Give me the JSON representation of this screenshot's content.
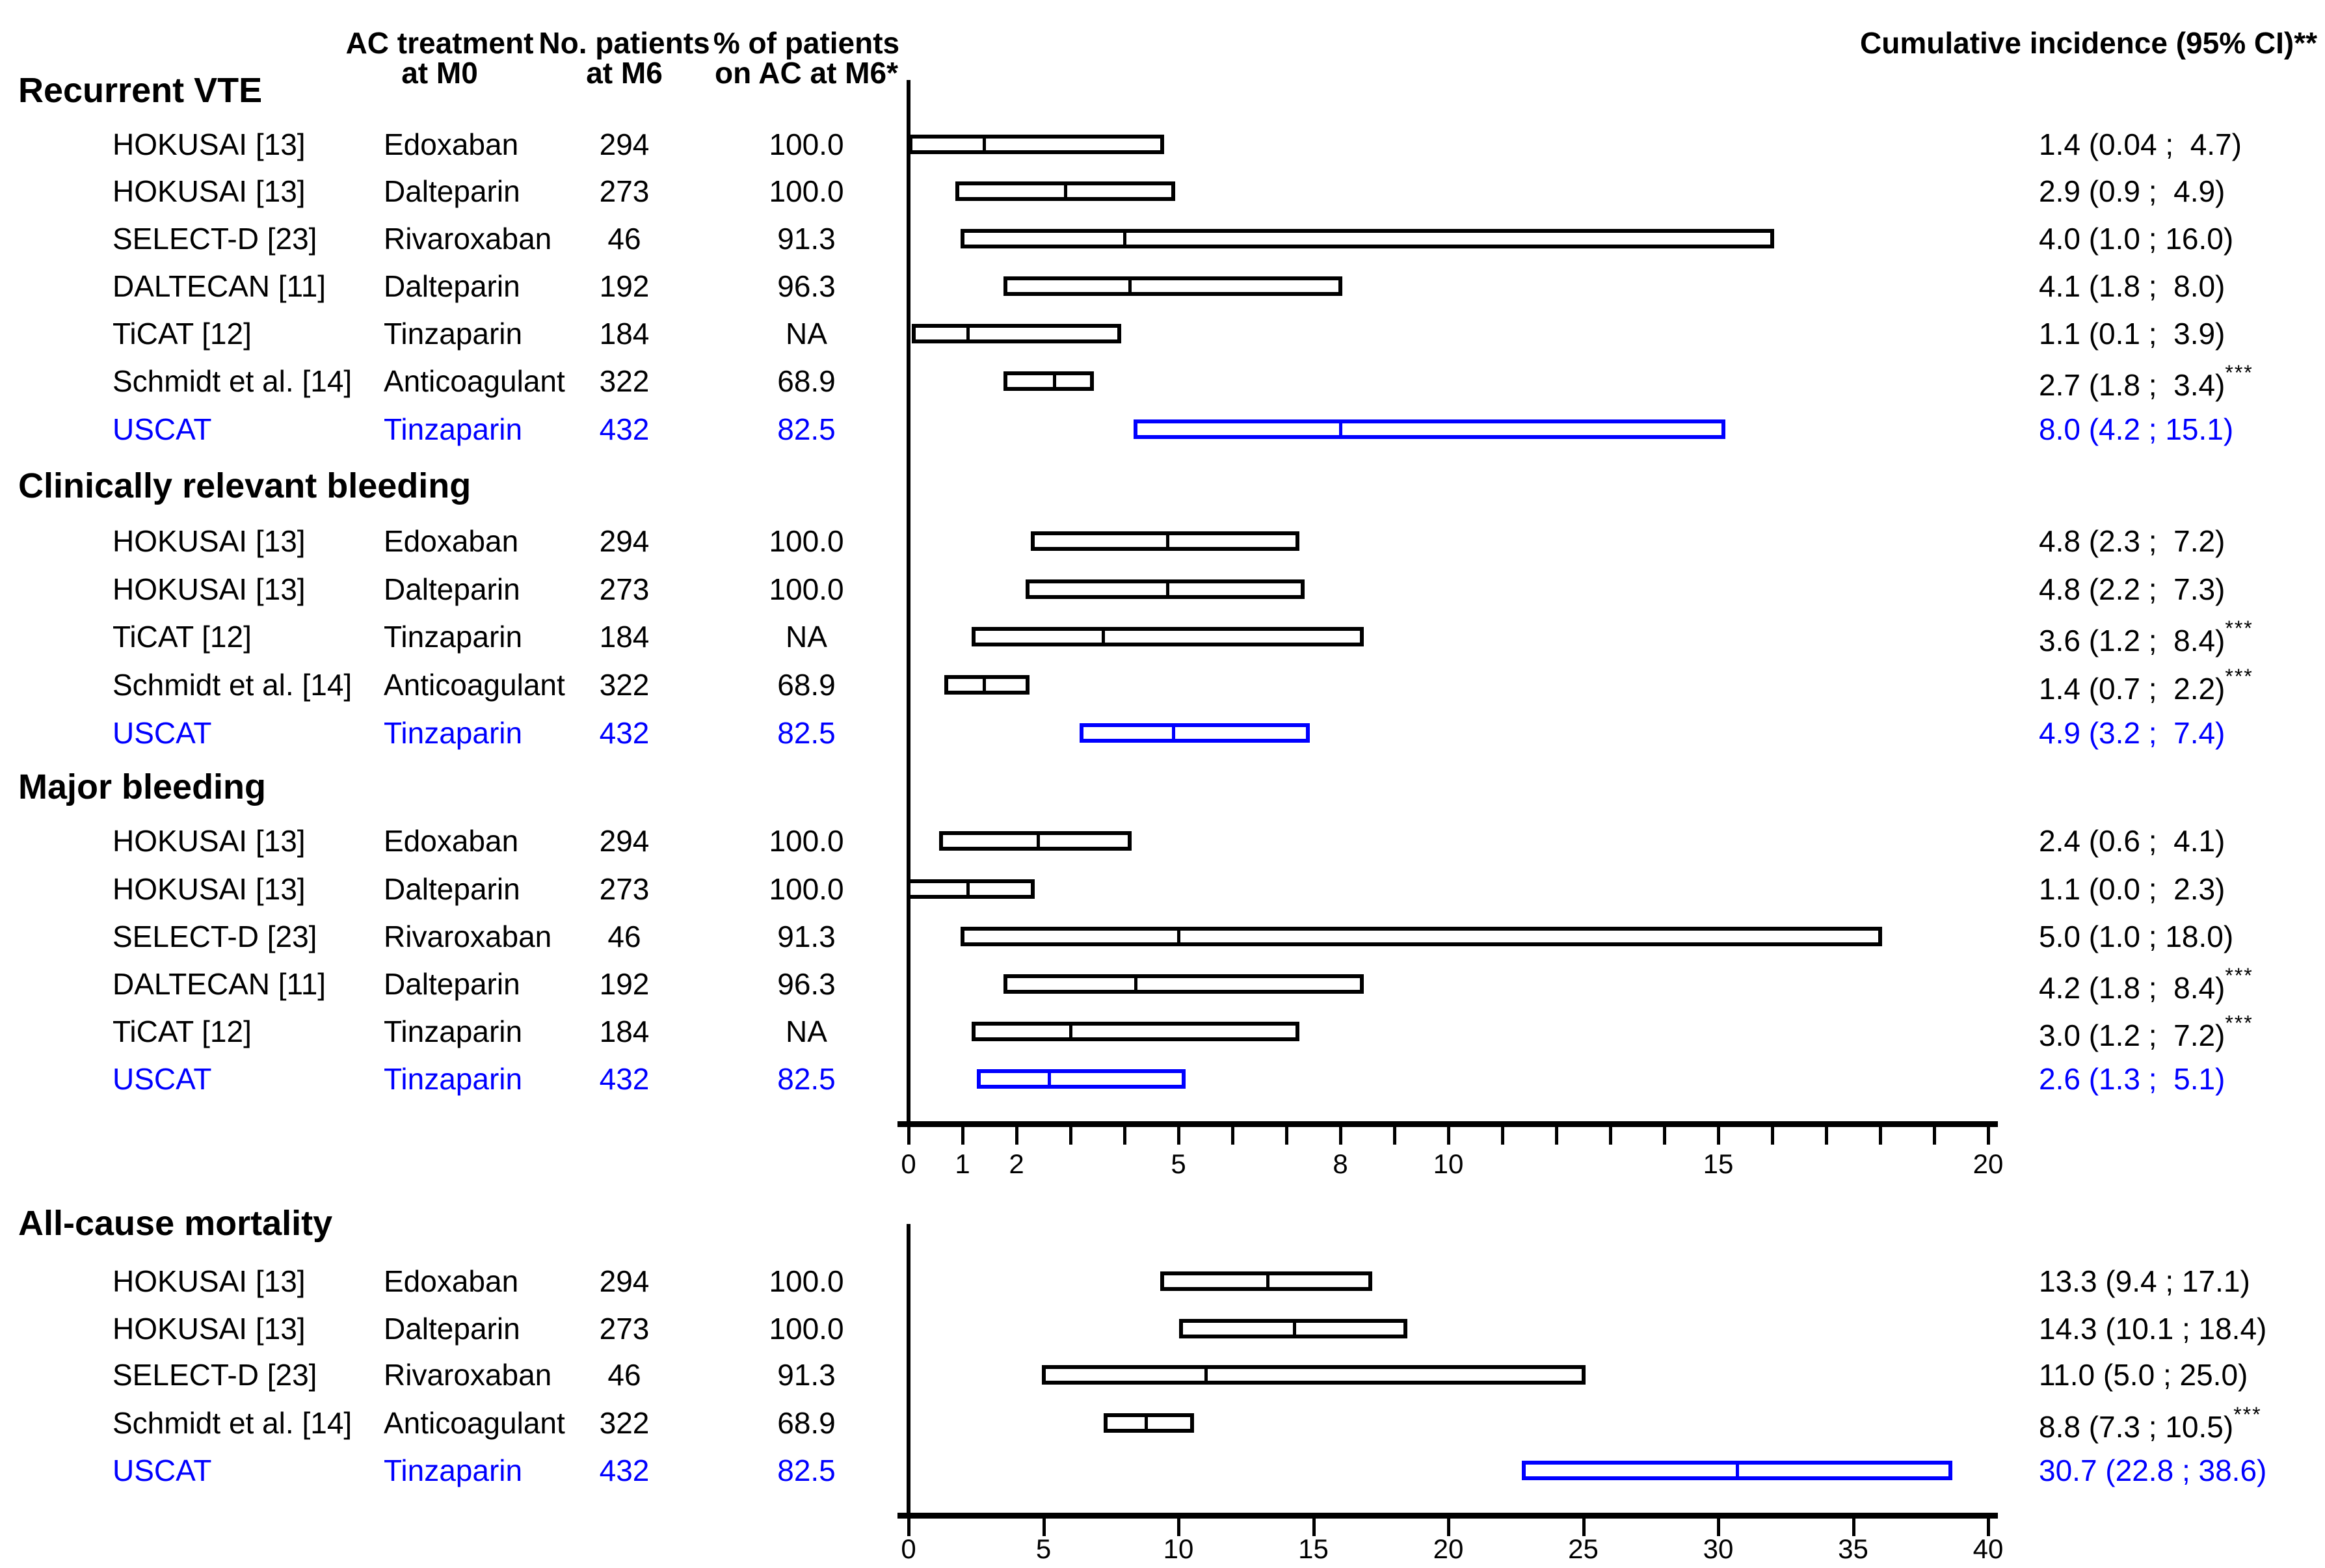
{
  "colors": {
    "text": "#000000",
    "highlight_blue": "#0000FF"
  },
  "table_header": {
    "treatment": [
      "AC treatment",
      "at M0"
    ],
    "patients": [
      "No. patients",
      "at M6"
    ],
    "pct_on_ac": [
      "% of patients",
      "on AC at M6*"
    ],
    "incidence": "Cumulative incidence (95% CI)**"
  },
  "chart_data": [
    {
      "type": "forest",
      "axis": {
        "xlim": [
          0,
          20
        ],
        "minor_tick_step": 1,
        "labeled_ticks": [
          0,
          1,
          2,
          5,
          8,
          10,
          15,
          20
        ]
      },
      "sections": [
        {
          "title": "Recurrent VTE",
          "rows": [
            {
              "study": "HOKUSAI [13]",
              "treatment": "Edoxaban",
              "n_patients": "294",
              "pct_on_ac": "100.0",
              "estimate": 1.4,
              "ci_low": 0.04,
              "ci_high": 4.7,
              "ci_label": "1.4 (0.04 ;  4.7)",
              "stars": "",
              "highlight": false
            },
            {
              "study": "HOKUSAI [13]",
              "treatment": "Dalteparin",
              "n_patients": "273",
              "pct_on_ac": "100.0",
              "estimate": 2.9,
              "ci_low": 0.9,
              "ci_high": 4.9,
              "ci_label": "2.9 (0.9 ;  4.9)",
              "stars": "",
              "highlight": false
            },
            {
              "study": "SELECT-D [23]",
              "treatment": "Rivaroxaban",
              "n_patients": "46",
              "pct_on_ac": "91.3",
              "estimate": 4.0,
              "ci_low": 1.0,
              "ci_high": 16.0,
              "ci_label": "4.0 (1.0 ; 16.0)",
              "stars": "",
              "highlight": false
            },
            {
              "study": "DALTECAN [11]",
              "treatment": "Dalteparin",
              "n_patients": "192",
              "pct_on_ac": "96.3",
              "estimate": 4.1,
              "ci_low": 1.8,
              "ci_high": 8.0,
              "ci_label": "4.1 (1.8 ;  8.0)",
              "stars": "",
              "highlight": false
            },
            {
              "study": "TiCAT [12]",
              "treatment": "Tinzaparin",
              "n_patients": "184",
              "pct_on_ac": "NA",
              "estimate": 1.1,
              "ci_low": 0.1,
              "ci_high": 3.9,
              "ci_label": "1.1 (0.1 ;  3.9)",
              "stars": "",
              "highlight": false
            },
            {
              "study": "Schmidt et al. [14]",
              "treatment": "Anticoagulant",
              "n_patients": "322",
              "pct_on_ac": "68.9",
              "estimate": 2.7,
              "ci_low": 1.8,
              "ci_high": 3.4,
              "ci_label": "2.7 (1.8 ;  3.4)",
              "stars": "***",
              "highlight": false
            },
            {
              "study": "USCAT",
              "treatment": "Tinzaparin",
              "n_patients": "432",
              "pct_on_ac": "82.5",
              "estimate": 8.0,
              "ci_low": 4.2,
              "ci_high": 15.1,
              "ci_label": "8.0 (4.2 ; 15.1)",
              "stars": "",
              "highlight": true
            }
          ]
        },
        {
          "title": "Clinically relevant bleeding",
          "rows": [
            {
              "study": "HOKUSAI [13]",
              "treatment": "Edoxaban",
              "n_patients": "294",
              "pct_on_ac": "100.0",
              "estimate": 4.8,
              "ci_low": 2.3,
              "ci_high": 7.2,
              "ci_label": "4.8 (2.3 ;  7.2)",
              "stars": "",
              "highlight": false
            },
            {
              "study": "HOKUSAI [13]",
              "treatment": "Dalteparin",
              "n_patients": "273",
              "pct_on_ac": "100.0",
              "estimate": 4.8,
              "ci_low": 2.2,
              "ci_high": 7.3,
              "ci_label": "4.8 (2.2 ;  7.3)",
              "stars": "",
              "highlight": false
            },
            {
              "study": "TiCAT [12]",
              "treatment": "Tinzaparin",
              "n_patients": "184",
              "pct_on_ac": "NA",
              "estimate": 3.6,
              "ci_low": 1.2,
              "ci_high": 8.4,
              "ci_label": "3.6 (1.2 ;  8.4)",
              "stars": "***",
              "highlight": false
            },
            {
              "study": "Schmidt et al. [14]",
              "treatment": "Anticoagulant",
              "n_patients": "322",
              "pct_on_ac": "68.9",
              "estimate": 1.4,
              "ci_low": 0.7,
              "ci_high": 2.2,
              "ci_label": "1.4 (0.7 ;  2.2)",
              "stars": "***",
              "highlight": false
            },
            {
              "study": "USCAT",
              "treatment": "Tinzaparin",
              "n_patients": "432",
              "pct_on_ac": "82.5",
              "estimate": 4.9,
              "ci_low": 3.2,
              "ci_high": 7.4,
              "ci_label": "4.9 (3.2 ;  7.4)",
              "stars": "",
              "highlight": true
            }
          ]
        },
        {
          "title": "Major bleeding",
          "rows": [
            {
              "study": "HOKUSAI [13]",
              "treatment": "Edoxaban",
              "n_patients": "294",
              "pct_on_ac": "100.0",
              "estimate": 2.4,
              "ci_low": 0.6,
              "ci_high": 4.1,
              "ci_label": "2.4 (0.6 ;  4.1)",
              "stars": "",
              "highlight": false
            },
            {
              "study": "HOKUSAI [13]",
              "treatment": "Dalteparin",
              "n_patients": "273",
              "pct_on_ac": "100.0",
              "estimate": 1.1,
              "ci_low": 0.0,
              "ci_high": 2.3,
              "ci_label": "1.1 (0.0 ;  2.3)",
              "stars": "",
              "highlight": false
            },
            {
              "study": "SELECT-D [23]",
              "treatment": "Rivaroxaban",
              "n_patients": "46",
              "pct_on_ac": "91.3",
              "estimate": 5.0,
              "ci_low": 1.0,
              "ci_high": 18.0,
              "ci_label": "5.0 (1.0 ; 18.0)",
              "stars": "",
              "highlight": false
            },
            {
              "study": "DALTECAN [11]",
              "treatment": "Dalteparin",
              "n_patients": "192",
              "pct_on_ac": "96.3",
              "estimate": 4.2,
              "ci_low": 1.8,
              "ci_high": 8.4,
              "ci_label": "4.2 (1.8 ;  8.4)",
              "stars": "***",
              "highlight": false
            },
            {
              "study": "TiCAT [12]",
              "treatment": "Tinzaparin",
              "n_patients": "184",
              "pct_on_ac": "NA",
              "estimate": 3.0,
              "ci_low": 1.2,
              "ci_high": 7.2,
              "ci_label": "3.0 (1.2 ;  7.2)",
              "stars": "***",
              "highlight": false
            },
            {
              "study": "USCAT",
              "treatment": "Tinzaparin",
              "n_patients": "432",
              "pct_on_ac": "82.5",
              "estimate": 2.6,
              "ci_low": 1.3,
              "ci_high": 5.1,
              "ci_label": "2.6 (1.3 ;  5.1)",
              "stars": "",
              "highlight": true
            }
          ]
        }
      ]
    },
    {
      "type": "forest",
      "axis": {
        "xlim": [
          0,
          40
        ],
        "minor_tick_step": 5,
        "labeled_ticks": [
          0,
          5,
          10,
          15,
          20,
          25,
          30,
          35,
          40
        ]
      },
      "sections": [
        {
          "title": "All-cause mortality",
          "rows": [
            {
              "study": "HOKUSAI [13]",
              "treatment": "Edoxaban",
              "n_patients": "294",
              "pct_on_ac": "100.0",
              "estimate": 13.3,
              "ci_low": 9.4,
              "ci_high": 17.1,
              "ci_label": "13.3 (9.4 ; 17.1)",
              "stars": "",
              "highlight": false
            },
            {
              "study": "HOKUSAI [13]",
              "treatment": "Dalteparin",
              "n_patients": "273",
              "pct_on_ac": "100.0",
              "estimate": 14.3,
              "ci_low": 10.1,
              "ci_high": 18.4,
              "ci_label": "14.3 (10.1 ; 18.4)",
              "stars": "",
              "highlight": false
            },
            {
              "study": "SELECT-D [23]",
              "treatment": "Rivaroxaban",
              "n_patients": "46",
              "pct_on_ac": "91.3",
              "estimate": 11.0,
              "ci_low": 5.0,
              "ci_high": 25.0,
              "ci_label": "11.0 (5.0 ; 25.0)",
              "stars": "",
              "highlight": false
            },
            {
              "study": "Schmidt et al. [14]",
              "treatment": "Anticoagulant",
              "n_patients": "322",
              "pct_on_ac": "68.9",
              "estimate": 8.8,
              "ci_low": 7.3,
              "ci_high": 10.5,
              "ci_label": "8.8 (7.3 ; 10.5)",
              "stars": "***",
              "highlight": false
            },
            {
              "study": "USCAT",
              "treatment": "Tinzaparin",
              "n_patients": "432",
              "pct_on_ac": "82.5",
              "estimate": 30.7,
              "ci_low": 22.8,
              "ci_high": 38.6,
              "ci_label": "30.7 (22.8 ; 38.6)",
              "stars": "",
              "highlight": true
            }
          ]
        }
      ]
    }
  ]
}
